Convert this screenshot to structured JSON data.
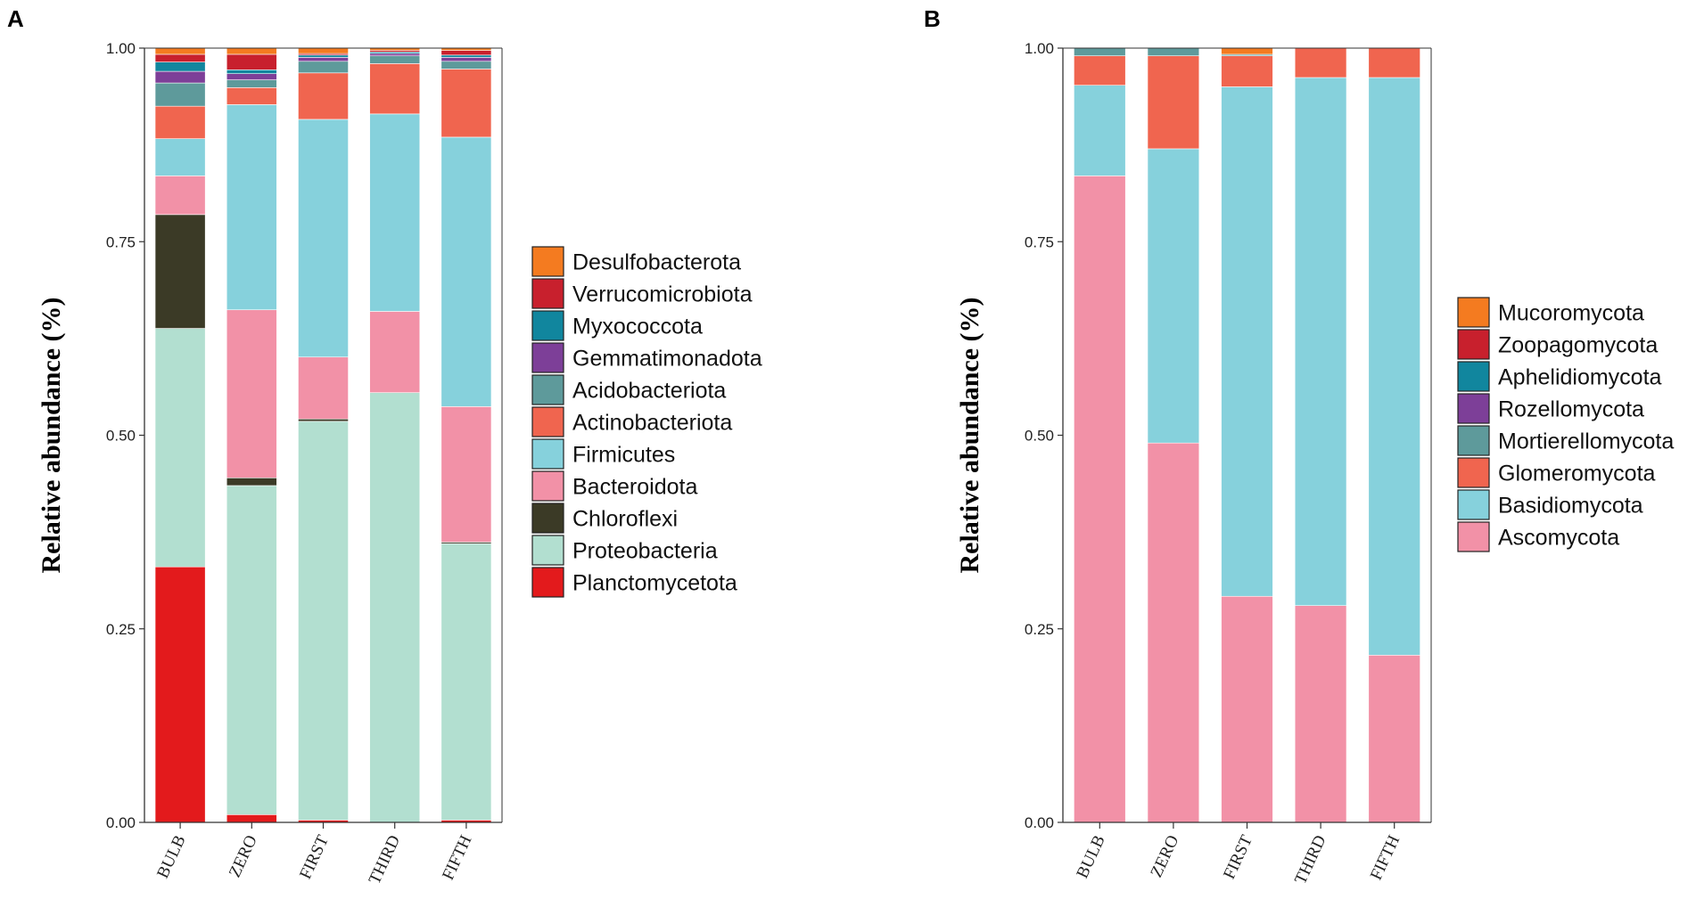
{
  "chart_data": [
    {
      "panel": "A",
      "type": "bar",
      "stacked": true,
      "title": "",
      "xlabel": "",
      "ylabel": "Relative abundance (%)",
      "ylim": [
        0,
        1
      ],
      "yticks": [
        "0.00",
        "0.25",
        "0.50",
        "0.75",
        "1.00"
      ],
      "categories": [
        "BULB",
        "ZERO",
        "FIRST",
        "THIRD",
        "FIFTH"
      ],
      "series": [
        {
          "name": "Planctomycetota",
          "color": "#e31a1c",
          "values": [
            0.33,
            0.01,
            0.003,
            0.0,
            0.003
          ]
        },
        {
          "name": "Proteobacteria",
          "color": "#b2dfd0",
          "values": [
            0.308,
            0.425,
            0.515,
            0.555,
            0.357
          ]
        },
        {
          "name": "Chloroflexi",
          "color": "#3b3a26",
          "values": [
            0.147,
            0.01,
            0.003,
            0.0,
            0.002
          ]
        },
        {
          "name": "Bacteroidota",
          "color": "#f291a7",
          "values": [
            0.05,
            0.217,
            0.08,
            0.105,
            0.175
          ]
        },
        {
          "name": "Firmicutes",
          "color": "#86d1dc",
          "values": [
            0.048,
            0.265,
            0.307,
            0.255,
            0.348
          ]
        },
        {
          "name": "Actinobacteriota",
          "color": "#f0654f",
          "values": [
            0.042,
            0.022,
            0.06,
            0.065,
            0.088
          ]
        },
        {
          "name": "Acidobacteriota",
          "color": "#5e9a9b",
          "values": [
            0.03,
            0.01,
            0.015,
            0.01,
            0.01
          ]
        },
        {
          "name": "Gemmatimonadota",
          "color": "#7d3f98",
          "values": [
            0.015,
            0.008,
            0.005,
            0.003,
            0.005
          ]
        },
        {
          "name": "Myxococcota",
          "color": "#11869e",
          "values": [
            0.012,
            0.005,
            0.003,
            0.002,
            0.003
          ]
        },
        {
          "name": "Verrucomicrobiota",
          "color": "#c8202d",
          "values": [
            0.01,
            0.02,
            0.002,
            0.002,
            0.006
          ]
        },
        {
          "name": "Desulfobacterota",
          "color": "#f47b20",
          "values": [
            0.008,
            0.008,
            0.007,
            0.003,
            0.003
          ]
        }
      ],
      "legend_title": "",
      "legend_order": [
        "Desulfobacterota",
        "Verrucomicrobiota",
        "Myxococcota",
        "Gemmatimonadota",
        "Acidobacteriota",
        "Actinobacteriota",
        "Firmicutes",
        "Bacteroidota",
        "Chloroflexi",
        "Proteobacteria",
        "Planctomycetota"
      ],
      "legend_position": "right"
    },
    {
      "panel": "B",
      "type": "bar",
      "stacked": true,
      "title": "",
      "xlabel": "",
      "ylabel": "Relative abundance (%)",
      "ylim": [
        0,
        1
      ],
      "yticks": [
        "0.00",
        "0.25",
        "0.50",
        "0.75",
        "1.00"
      ],
      "categories": [
        "BULB",
        "ZERO",
        "FIRST",
        "THIRD",
        "FIFTH"
      ],
      "series": [
        {
          "name": "Ascomycota",
          "color": "#f291a7",
          "values": [
            0.835,
            0.49,
            0.292,
            0.28,
            0.216
          ]
        },
        {
          "name": "Basidiomycota",
          "color": "#86d1dc",
          "values": [
            0.117,
            0.38,
            0.658,
            0.682,
            0.746
          ]
        },
        {
          "name": "Glomeromycota",
          "color": "#f0654f",
          "values": [
            0.038,
            0.12,
            0.04,
            0.038,
            0.038
          ]
        },
        {
          "name": "Mortierellomycota",
          "color": "#5e9a9b",
          "values": [
            0.01,
            0.01,
            0.002,
            0.0,
            0.0
          ]
        },
        {
          "name": "Rozellomycota",
          "color": "#7d3f98",
          "values": [
            0.0,
            0.0,
            0.0,
            0.0,
            0.0
          ]
        },
        {
          "name": "Aphelidiomycota",
          "color": "#11869e",
          "values": [
            0.0,
            0.0,
            0.0,
            0.0,
            0.0
          ]
        },
        {
          "name": "Zoopagomycota",
          "color": "#c8202d",
          "values": [
            0.0,
            0.0,
            0.0,
            0.0,
            0.0
          ]
        },
        {
          "name": "Mucoromycota",
          "color": "#f47b20",
          "values": [
            0.0,
            0.0,
            0.008,
            0.0,
            0.0
          ]
        }
      ],
      "legend_title": "",
      "legend_order": [
        "Mucoromycota",
        "Zoopagomycota",
        "Aphelidiomycota",
        "Rozellomycota",
        "Mortierellomycota",
        "Glomeromycota",
        "Basidiomycota",
        "Ascomycota"
      ],
      "legend_position": "right"
    }
  ]
}
